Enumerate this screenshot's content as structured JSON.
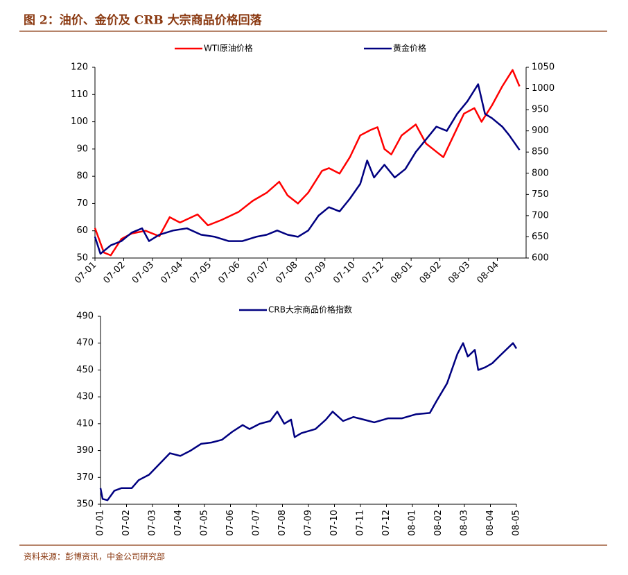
{
  "header": {
    "title": "图 2：油价、金价及 CRB 大宗商品价格回落"
  },
  "source": "资料来源：彭博资讯，中金公司研究部",
  "chart_data": [
    {
      "type": "line",
      "xlim": [
        0,
        15
      ],
      "xticks": [
        {
          "value": 0,
          "label": "07-01"
        },
        {
          "value": 1,
          "label": "07-02"
        },
        {
          "value": 2,
          "label": "07-03"
        },
        {
          "value": 3,
          "label": "07-04"
        },
        {
          "value": 4,
          "label": "07-05"
        },
        {
          "value": 5,
          "label": "07-06"
        },
        {
          "value": 6,
          "label": "07-07"
        },
        {
          "value": 7,
          "label": "07-08"
        },
        {
          "value": 8,
          "label": "07-09"
        },
        {
          "value": 9,
          "label": "07-10"
        },
        {
          "value": 10,
          "label": "07-12"
        },
        {
          "value": 11,
          "label": "08-01"
        },
        {
          "value": 12,
          "label": "08-02"
        },
        {
          "value": 13,
          "label": "08-03"
        },
        {
          "value": 14,
          "label": "08-04"
        }
      ],
      "ylim": [
        50,
        120
      ],
      "yticks": [
        50,
        60,
        70,
        80,
        90,
        100,
        110,
        120
      ],
      "y2lim": [
        600,
        1050
      ],
      "y2ticks": [
        600,
        650,
        700,
        750,
        800,
        850,
        900,
        950,
        1000,
        1050
      ],
      "series": [
        {
          "name": "WTI原油价格",
          "color": "#ff0000",
          "x": [
            0,
            0.31,
            0.55,
            0.92,
            1.28,
            1.76,
            2.24,
            2.6,
            2.96,
            3.57,
            3.93,
            4.41,
            5.01,
            5.49,
            5.98,
            6.41,
            6.7,
            7.06,
            7.42,
            7.9,
            8.14,
            8.51,
            8.87,
            9.23,
            9.59,
            9.83,
            10.07,
            10.31,
            10.67,
            11.16,
            11.52,
            11.88,
            12.12,
            12.48,
            12.84,
            13.2,
            13.45,
            13.81,
            14.17,
            14.53,
            14.77
          ],
          "values": [
            61,
            52,
            51,
            57,
            59,
            60,
            58,
            65,
            63,
            66,
            62,
            64,
            67,
            71,
            74,
            78,
            73,
            70,
            74,
            82,
            83,
            81,
            87,
            95,
            97,
            98,
            90,
            88,
            95,
            99,
            92,
            89,
            87,
            95,
            103,
            105,
            100,
            106,
            113,
            119,
            113
          ]
        },
        {
          "name": "黄金价格",
          "color": "#000080",
          "axis": "y2",
          "x": [
            0,
            0.19,
            0.55,
            0.92,
            1.28,
            1.64,
            1.88,
            2.24,
            2.72,
            3.2,
            3.69,
            4.17,
            4.65,
            5.13,
            5.61,
            5.98,
            6.34,
            6.7,
            7.06,
            7.42,
            7.78,
            8.14,
            8.51,
            8.87,
            9.23,
            9.47,
            9.71,
            10.07,
            10.43,
            10.8,
            11.16,
            11.52,
            11.88,
            12.24,
            12.6,
            12.96,
            13.33,
            13.57,
            13.81,
            14.17,
            14.41,
            14.77
          ],
          "values": [
            650,
            610,
            630,
            640,
            660,
            670,
            640,
            655,
            665,
            670,
            655,
            650,
            640,
            640,
            650,
            655,
            665,
            655,
            650,
            665,
            700,
            720,
            710,
            740,
            775,
            830,
            790,
            820,
            790,
            810,
            850,
            880,
            910,
            900,
            940,
            970,
            1010,
            940,
            930,
            910,
            890,
            855
          ]
        }
      ]
    },
    {
      "type": "line",
      "xlim": [
        0,
        16
      ],
      "xticks": [
        {
          "value": 0,
          "label": "07-01"
        },
        {
          "value": 1,
          "label": "07-02"
        },
        {
          "value": 2,
          "label": "07-03"
        },
        {
          "value": 3,
          "label": "07-04"
        },
        {
          "value": 4,
          "label": "07-05"
        },
        {
          "value": 5,
          "label": "07-06"
        },
        {
          "value": 6,
          "label": "07-07"
        },
        {
          "value": 7,
          "label": "07-08"
        },
        {
          "value": 8,
          "label": "07-09"
        },
        {
          "value": 9,
          "label": "07-10"
        },
        {
          "value": 10,
          "label": "07-11"
        },
        {
          "value": 11,
          "label": "07-12"
        },
        {
          "value": 12,
          "label": "08-01"
        },
        {
          "value": 13,
          "label": "08-02"
        },
        {
          "value": 14,
          "label": "08-03"
        },
        {
          "value": 15,
          "label": "08-04"
        },
        {
          "value": 16,
          "label": "08-05"
        }
      ],
      "ylim": [
        350,
        490
      ],
      "yticks": [
        350,
        370,
        390,
        410,
        430,
        450,
        470,
        490
      ],
      "series": [
        {
          "name": "CRB大宗商品价格指数",
          "color": "#000080",
          "x": [
            0,
            0.08,
            0.27,
            0.53,
            0.8,
            1.2,
            1.47,
            1.87,
            2.27,
            2.67,
            3.07,
            3.47,
            3.87,
            4.27,
            4.67,
            5.07,
            5.47,
            5.73,
            6.13,
            6.53,
            6.8,
            7.07,
            7.33,
            7.47,
            7.73,
            8.27,
            8.67,
            8.93,
            9.33,
            9.73,
            10.13,
            10.53,
            11.07,
            11.6,
            12.13,
            12.67,
            12.93,
            13.33,
            13.73,
            13.95,
            14.13,
            14.4,
            14.53,
            14.8,
            15.07,
            15.33,
            15.6,
            15.87,
            16
          ],
          "values": [
            362,
            354,
            353,
            360,
            362,
            362,
            368,
            372,
            380,
            388,
            386,
            390,
            395,
            396,
            398,
            404,
            409,
            406,
            410,
            412,
            419,
            410,
            413,
            400,
            403,
            406,
            413,
            419,
            412,
            415,
            413,
            411,
            414,
            414,
            417,
            418,
            427,
            440,
            462,
            470,
            460,
            465,
            450,
            452,
            455,
            460,
            465,
            470,
            466
          ]
        }
      ]
    }
  ]
}
